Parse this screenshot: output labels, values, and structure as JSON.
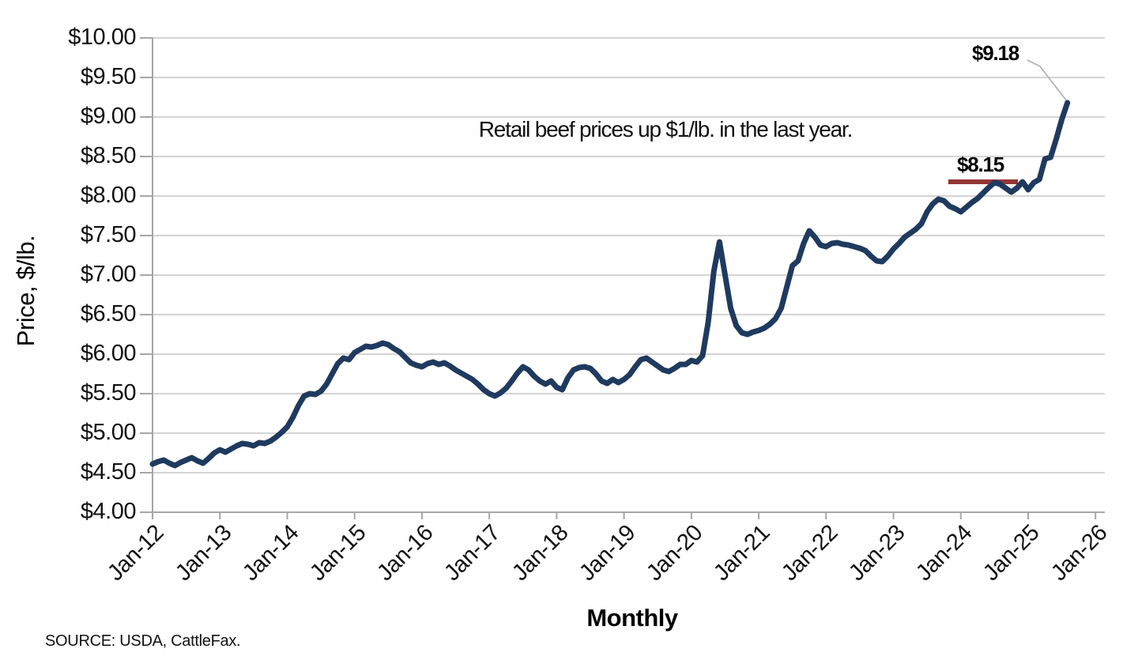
{
  "source_note": "SOURCE: USDA, CattleFax.",
  "chart_data": {
    "type": "line",
    "title": "",
    "xlabel": "Monthly",
    "ylabel": "Price, $/lb.",
    "ylim": [
      4.0,
      10.0
    ],
    "y_tick_step": 0.5,
    "grid": true,
    "y_tick_labels": [
      "$10.00",
      "$9.50",
      "$9.00",
      "$8.50",
      "$8.00",
      "$7.50",
      "$7.00",
      "$6.50",
      "$6.00",
      "$5.50",
      "$5.00",
      "$4.50",
      "$4.00"
    ],
    "x_tick_labels": [
      "Jan-12",
      "Jan-13",
      "Jan-14",
      "Jan-15",
      "Jan-16",
      "Jan-17",
      "Jan-18",
      "Jan-19",
      "Jan-20",
      "Jan-21",
      "Jan-22",
      "Jan-23",
      "Jan-24",
      "Jan-25",
      "Jan-26"
    ],
    "series": [
      {
        "name": "Retail beef price",
        "start": "Jan-12",
        "frequency": "monthly",
        "values": [
          4.61,
          4.64,
          4.66,
          4.62,
          4.59,
          4.63,
          4.66,
          4.69,
          4.65,
          4.62,
          4.68,
          4.75,
          4.79,
          4.76,
          4.8,
          4.84,
          4.87,
          4.86,
          4.84,
          4.88,
          4.87,
          4.9,
          4.95,
          5.01,
          5.08,
          5.2,
          5.35,
          5.47,
          5.5,
          5.49,
          5.53,
          5.62,
          5.75,
          5.88,
          5.95,
          5.93,
          6.02,
          6.06,
          6.1,
          6.09,
          6.11,
          6.14,
          6.12,
          6.07,
          6.03,
          5.96,
          5.89,
          5.86,
          5.84,
          5.88,
          5.9,
          5.87,
          5.89,
          5.85,
          5.8,
          5.76,
          5.72,
          5.68,
          5.62,
          5.55,
          5.5,
          5.47,
          5.51,
          5.57,
          5.66,
          5.76,
          5.84,
          5.8,
          5.72,
          5.66,
          5.62,
          5.66,
          5.58,
          5.55,
          5.7,
          5.8,
          5.83,
          5.84,
          5.82,
          5.75,
          5.66,
          5.63,
          5.68,
          5.64,
          5.68,
          5.74,
          5.84,
          5.93,
          5.95,
          5.9,
          5.85,
          5.8,
          5.78,
          5.82,
          5.87,
          5.87,
          5.92,
          5.9,
          5.98,
          6.4,
          7.05,
          7.42,
          7.0,
          6.58,
          6.36,
          6.27,
          6.25,
          6.28,
          6.3,
          6.33,
          6.38,
          6.45,
          6.58,
          6.85,
          7.12,
          7.18,
          7.4,
          7.56,
          7.48,
          7.38,
          7.36,
          7.4,
          7.41,
          7.39,
          7.38,
          7.36,
          7.34,
          7.31,
          7.24,
          7.18,
          7.17,
          7.24,
          7.33,
          7.4,
          7.48,
          7.53,
          7.58,
          7.65,
          7.8,
          7.9,
          7.96,
          7.94,
          7.87,
          7.84,
          7.8,
          7.86,
          7.92,
          7.97,
          8.04,
          8.11,
          8.17,
          8.15,
          8.1,
          8.05,
          8.1,
          8.18,
          8.08,
          8.17,
          8.21,
          8.47,
          8.49,
          8.72,
          8.97,
          9.18
        ]
      }
    ],
    "annotations": {
      "note": "Retail beef prices up $1/lb. in the last year.",
      "end_point": {
        "label": "$9.18",
        "value": 9.18
      },
      "year_ago": {
        "label": "$8.15",
        "value": 8.15
      }
    },
    "colors": {
      "line": "#1f3a5f",
      "year_ago_marker": "#943634",
      "gridline": "#c6c6c6",
      "axis": "#a6a6a6",
      "leader": "#b3b3b3",
      "text": "#000000"
    }
  }
}
